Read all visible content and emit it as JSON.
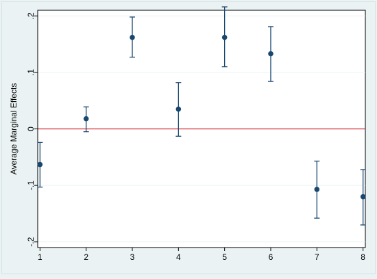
{
  "chart_data": {
    "type": "scatter",
    "title": "",
    "xlabel": "",
    "ylabel": "Average Marginal Effects",
    "x": [
      1,
      2,
      3,
      4,
      5,
      6,
      7,
      8
    ],
    "x_tick_labels": [
      "1",
      "2",
      "3",
      "4",
      "5",
      "6",
      "7",
      "8"
    ],
    "y_ticks": [
      -0.2,
      -0.1,
      0,
      0.1,
      0.2
    ],
    "y_tick_labels": [
      "-.2",
      "-.1",
      "0",
      ".1",
      ".2"
    ],
    "xlim": [
      0.95,
      8.05
    ],
    "ylim": [
      -0.21,
      0.21
    ],
    "series": [
      {
        "estimate": [
          -0.063,
          0.018,
          0.162,
          0.035,
          0.162,
          0.133,
          -0.107,
          -0.12
        ],
        "ci_lower": [
          -0.103,
          -0.005,
          0.127,
          -0.013,
          0.11,
          0.084,
          -0.158,
          -0.17
        ],
        "ci_upper": [
          -0.024,
          0.039,
          0.198,
          0.082,
          0.216,
          0.181,
          -0.057,
          -0.072
        ]
      }
    ],
    "reference_line": {
      "y": 0,
      "color": "#d1242f"
    },
    "marker_color": "#1a476f",
    "plot_background": "#ffffff",
    "outer_background": "#eaf2f3",
    "grid": true,
    "grid_color": "#eaf2f3"
  }
}
